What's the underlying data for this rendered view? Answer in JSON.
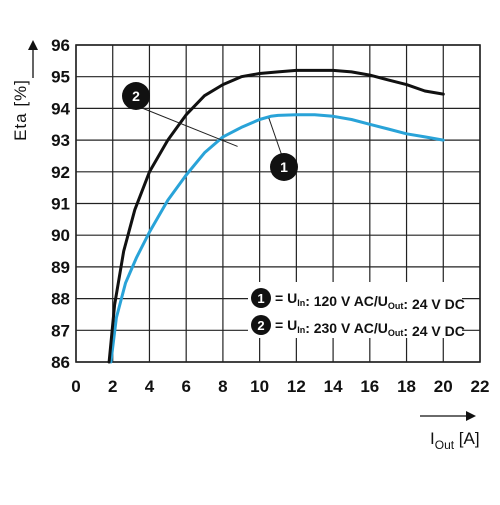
{
  "chart_data": {
    "type": "line",
    "ylabel": "Eta [%]",
    "xlabel_main": "I",
    "xlabel_sub": "Out",
    "xlabel_unit": " [A]",
    "xlim": [
      0,
      22
    ],
    "ylim": [
      86,
      96
    ],
    "xticks": [
      0,
      2,
      4,
      6,
      8,
      10,
      12,
      14,
      16,
      18,
      20,
      22
    ],
    "yticks": [
      86,
      87,
      88,
      89,
      90,
      91,
      92,
      93,
      94,
      95,
      96
    ],
    "grid": true,
    "series": [
      {
        "id": "1",
        "color": "#29a3d8",
        "x": [
          1.9,
          2.2,
          2.7,
          3.3,
          4.0,
          5.0,
          6.0,
          7.0,
          8.0,
          9.0,
          10.0,
          10.6,
          11.0,
          12.0,
          13.0,
          14.0,
          15.0,
          16.0,
          17.0,
          18.0,
          19.0,
          20.0
        ],
        "y": [
          86.0,
          87.4,
          88.5,
          89.3,
          90.1,
          91.1,
          91.9,
          92.6,
          93.1,
          93.4,
          93.65,
          93.75,
          93.78,
          93.8,
          93.8,
          93.75,
          93.65,
          93.5,
          93.35,
          93.2,
          93.1,
          93.0
        ]
      },
      {
        "id": "2",
        "color": "#111111",
        "x": [
          1.8,
          2.1,
          2.6,
          3.2,
          4.0,
          5.0,
          6.0,
          7.0,
          8.0,
          9.0,
          10.0,
          11.0,
          12.0,
          13.0,
          14.0,
          15.0,
          16.0,
          17.0,
          18.0,
          19.0,
          20.0
        ],
        "y": [
          86.0,
          87.8,
          89.5,
          90.8,
          92.0,
          93.0,
          93.8,
          94.4,
          94.75,
          95.0,
          95.1,
          95.15,
          95.2,
          95.2,
          95.2,
          95.15,
          95.05,
          94.9,
          94.75,
          94.55,
          94.45
        ]
      }
    ],
    "legend": [
      {
        "id": "1",
        "eq": "= U",
        "sub1": "In",
        "mid": ": 120 V AC/U",
        "sub2": "Out",
        "tail": ": 24 V DC"
      },
      {
        "id": "2",
        "eq": "= U",
        "sub1": "In",
        "mid": ": 230 V AC/U",
        "sub2": "Out",
        "tail": ": 24 V DC"
      }
    ],
    "markers": [
      {
        "id": "2",
        "label": "2",
        "points_to_x": 8.8,
        "points_to_y": 92.8
      },
      {
        "id": "1",
        "label": "1",
        "points_to_x": 10.5,
        "points_to_y": 93.7
      }
    ]
  }
}
